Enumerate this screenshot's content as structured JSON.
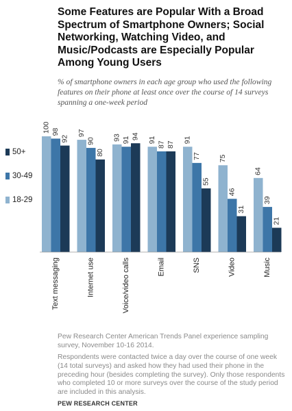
{
  "title": "Some Features are Popular With a Broad Spectrum of Smartphone Owners; Social Networking, Watching Video, and Music/Podcasts are Especially Popular Among Young Users",
  "subtitle": "% of smartphone owners in each age group who used the following features on their phone at least once over the course of 14 surveys spanning a one-week period",
  "source": "Pew Research Center American Trends Panel experience sampling survey, November 10-16 2014.",
  "note": "Respondents were contacted twice a day over the course of one week (14 total surveys) and asked how they had used their phone in the preceding hour (besides completing the survey). Only those respondents who completed 10 or more surveys over the course of the study period are included in this analysis.",
  "brand": "PEW RESEARCH CENTER",
  "colors": {
    "age_18_29": "#8fb3cf",
    "age_30_49": "#3d76a8",
    "age_50_plus": "#1c3a57"
  },
  "chart_data": {
    "type": "bar",
    "categories": [
      "Text messaging",
      "Internet use",
      "Voice/video calls",
      "Email",
      "SNS",
      "Video",
      "Music"
    ],
    "series": [
      {
        "name": "18-29",
        "values": [
          100,
          97,
          93,
          91,
          91,
          75,
          64
        ]
      },
      {
        "name": "30-49",
        "values": [
          98,
          90,
          91,
          87,
          77,
          46,
          39
        ]
      },
      {
        "name": "50+",
        "values": [
          92,
          80,
          94,
          87,
          55,
          31,
          21
        ]
      }
    ],
    "legend": [
      "50+",
      "30-49",
      "18-29"
    ],
    "legend_position": "left",
    "ylim": [
      0,
      100
    ],
    "grid": false
  }
}
